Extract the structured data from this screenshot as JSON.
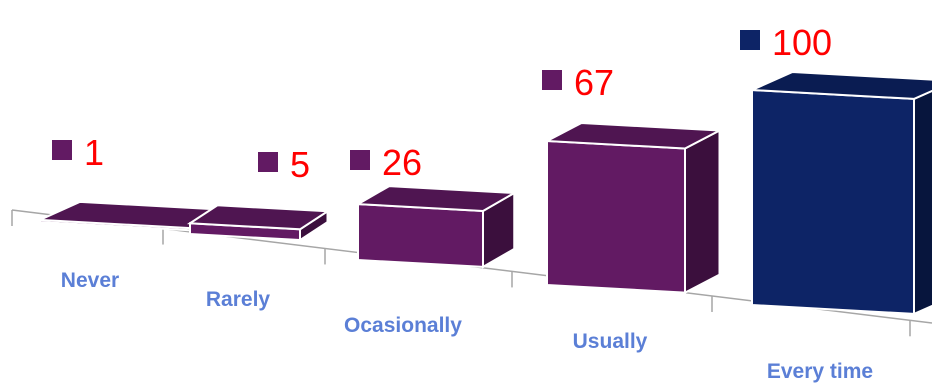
{
  "chart_data": {
    "type": "bar",
    "style": "3d-perspective",
    "categories": [
      "Never",
      "Rarely",
      "Ocasionally",
      "Usually",
      "Every time"
    ],
    "values": [
      1,
      5,
      26,
      67,
      100
    ],
    "ylim": [
      0,
      100
    ],
    "grid": false,
    "legend": "none",
    "colors": {
      "bar_purple": "#621a63",
      "bar_purple_top": "#4f1551",
      "bar_purple_side": "#3b0f3d",
      "bar_navy": "#0d2466",
      "bar_navy_top": "#0a1c52",
      "bar_navy_side": "#07153d",
      "value_label": "#ff0000",
      "category_label": "#5b7fd6",
      "axis": "#a6a6a6"
    }
  }
}
